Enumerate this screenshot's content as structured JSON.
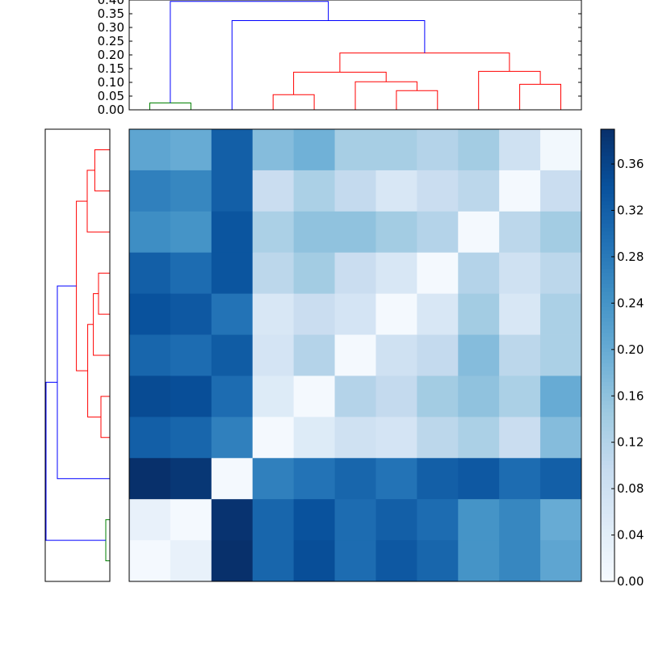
{
  "chart_data": [
    {
      "type": "heatmap",
      "title": "",
      "xlabel": "",
      "ylabel": "",
      "colormap": "Blues",
      "vmin": 0.0,
      "vmax": 0.39,
      "xticklabels": [],
      "yticklabels": [],
      "values": [
        [
          0.21,
          0.2,
          0.32,
          0.17,
          0.19,
          0.135,
          0.135,
          0.12,
          0.14,
          0.08,
          0.01
        ],
        [
          0.27,
          0.26,
          0.32,
          0.09,
          0.13,
          0.1,
          0.06,
          0.09,
          0.11,
          0.005,
          0.09
        ],
        [
          0.25,
          0.24,
          0.335,
          0.13,
          0.16,
          0.16,
          0.14,
          0.12,
          0.005,
          0.11,
          0.14
        ],
        [
          0.32,
          0.3,
          0.335,
          0.11,
          0.14,
          0.09,
          0.06,
          0.005,
          0.12,
          0.08,
          0.11
        ],
        [
          0.34,
          0.33,
          0.29,
          0.06,
          0.09,
          0.07,
          0.005,
          0.06,
          0.14,
          0.06,
          0.13
        ],
        [
          0.31,
          0.3,
          0.325,
          0.07,
          0.12,
          0.005,
          0.08,
          0.1,
          0.17,
          0.11,
          0.13
        ],
        [
          0.35,
          0.345,
          0.3,
          0.05,
          0.005,
          0.12,
          0.1,
          0.14,
          0.16,
          0.13,
          0.2
        ],
        [
          0.32,
          0.31,
          0.27,
          0.005,
          0.05,
          0.08,
          0.07,
          0.11,
          0.13,
          0.09,
          0.17
        ],
        [
          0.39,
          0.38,
          0.005,
          0.27,
          0.29,
          0.31,
          0.29,
          0.32,
          0.33,
          0.3,
          0.32
        ],
        [
          0.03,
          0.005,
          0.385,
          0.31,
          0.34,
          0.3,
          0.32,
          0.3,
          0.24,
          0.26,
          0.2
        ],
        [
          0.005,
          0.03,
          0.39,
          0.31,
          0.345,
          0.3,
          0.33,
          0.31,
          0.24,
          0.26,
          0.21
        ]
      ],
      "colorbar": {
        "ticks": [
          "0.00",
          "0.04",
          "0.08",
          "0.12",
          "0.16",
          "0.20",
          "0.24",
          "0.28",
          "0.32",
          "0.36"
        ]
      }
    },
    {
      "type": "dendrogram",
      "orientation": "top",
      "ylim": [
        0,
        0.4
      ],
      "yticklabels": [
        "0.00",
        "0.05",
        "0.10",
        "0.15",
        "0.20",
        "0.25",
        "0.30",
        "0.35",
        "0.40"
      ],
      "leaves": 11,
      "links": [
        {
          "l": 0,
          "r": 1,
          "h": 0.025,
          "color": "#008000"
        },
        {
          "l": 3,
          "r": 4,
          "h": 0.055,
          "color": "#ff0000"
        },
        {
          "l": 6,
          "r": 7,
          "h": 0.07,
          "color": "#ff0000"
        },
        {
          "l": 5,
          "r": "n2",
          "h": 0.102,
          "color": "#ff0000"
        },
        {
          "l": 9,
          "r": 10,
          "h": 0.093,
          "color": "#ff0000"
        },
        {
          "l": 8,
          "r": "n4",
          "h": 0.14,
          "color": "#ff0000"
        },
        {
          "l": "n1",
          "r": "n3",
          "h": 0.137,
          "color": "#ff0000"
        },
        {
          "l": "n6",
          "r": "n5",
          "h": 0.207,
          "color": "#ff0000"
        },
        {
          "l": 2,
          "r": "n7",
          "h": 0.325,
          "color": "#0000ff"
        },
        {
          "l": "n0",
          "r": "n8",
          "h": 0.395,
          "color": "#0000ff"
        }
      ]
    },
    {
      "type": "dendrogram",
      "orientation": "left",
      "leaves": 11,
      "height_max": 0.4,
      "links": [
        {
          "l": 9,
          "r": 10,
          "h": 0.025,
          "color": "#008000"
        },
        {
          "l": 6,
          "r": 7,
          "h": 0.055,
          "color": "#ff0000"
        },
        {
          "l": 3,
          "r": 4,
          "h": 0.07,
          "color": "#ff0000"
        },
        {
          "l": 5,
          "r": "n2",
          "h": 0.102,
          "color": "#ff0000"
        },
        {
          "l": 0,
          "r": 1,
          "h": 0.093,
          "color": "#ff0000"
        },
        {
          "l": 2,
          "r": "n4",
          "h": 0.14,
          "color": "#ff0000"
        },
        {
          "l": "n1",
          "r": "n3",
          "h": 0.137,
          "color": "#ff0000"
        },
        {
          "l": "n5",
          "r": "n6",
          "h": 0.207,
          "color": "#ff0000"
        },
        {
          "l": 8,
          "r": "n7",
          "h": 0.325,
          "color": "#0000ff"
        },
        {
          "l": "n8",
          "r": "n0",
          "h": 0.395,
          "color": "#0000ff"
        }
      ]
    }
  ]
}
